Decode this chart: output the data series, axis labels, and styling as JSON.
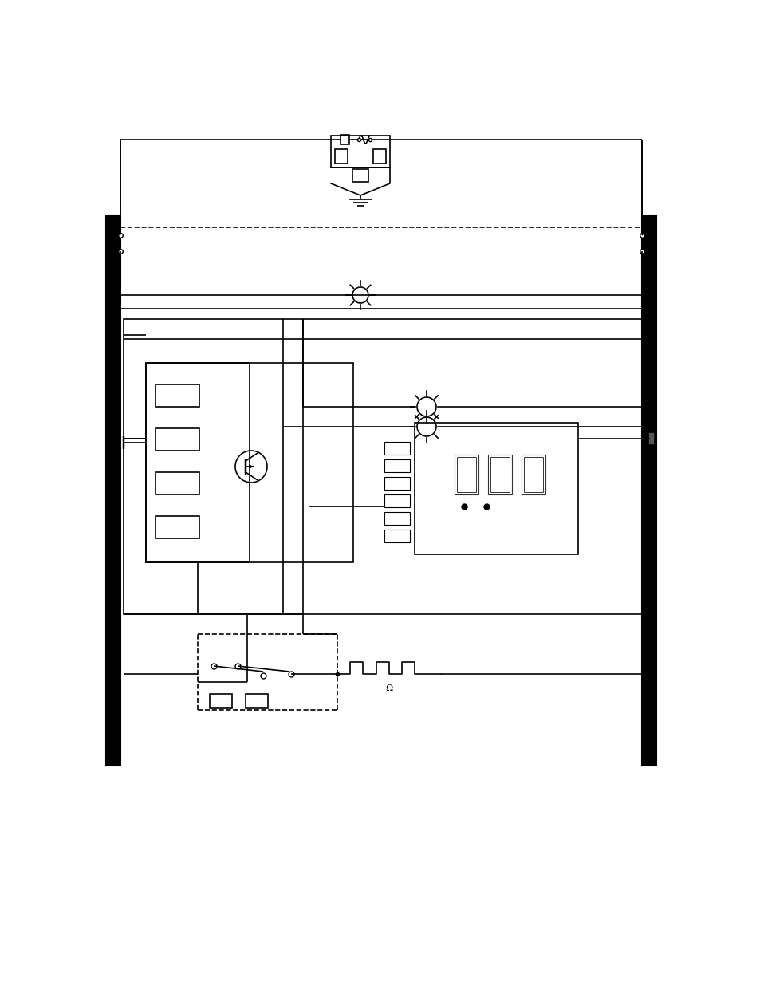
{
  "background_color": "#ffffff",
  "line_color": "#000000",
  "line_width": 1.2,
  "fig_width": 9.54,
  "fig_height": 12.35,
  "dpi": 100
}
